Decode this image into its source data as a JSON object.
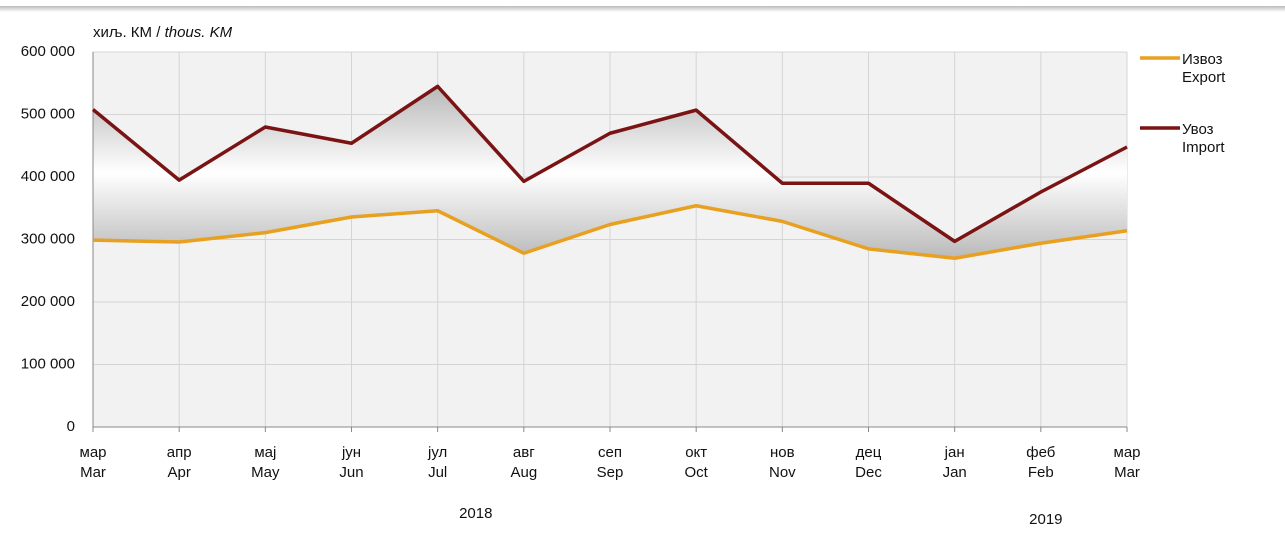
{
  "chart_data": {
    "type": "line",
    "y_label": {
      "local": "хиљ. КМ /",
      "english": "thous. KM"
    },
    "categories": [
      "мар",
      "апр",
      "мај",
      "јун",
      "јул",
      "авг",
      "сеп",
      "окт",
      "нов",
      "дец",
      "јан",
      "феб",
      "мар"
    ],
    "categories_en": [
      "Mar",
      "Apr",
      "May",
      "Jun",
      "Jul",
      "Aug",
      "Sep",
      "Oct",
      "Nov",
      "Dec",
      "Jan",
      "Feb",
      "Mar"
    ],
    "years": [
      "2018",
      "2019"
    ],
    "series": [
      {
        "name": "Извоз",
        "name_en": "Export",
        "color": "#e8a020",
        "values": [
          299000,
          296000,
          311000,
          336000,
          346000,
          278000,
          324000,
          354000,
          329000,
          285000,
          270000,
          294000,
          314000
        ]
      },
      {
        "name": "Увоз",
        "name_en": "Import",
        "color": "#7a1414",
        "values": [
          508000,
          395000,
          480000,
          454000,
          545000,
          393000,
          470000,
          507000,
          390000,
          390000,
          297000,
          376000,
          448000
        ]
      }
    ],
    "ylim": [
      0,
      600000
    ],
    "yticks": [
      0,
      {
        "value": 100000,
        "label": "100 000"
      },
      {
        "value": 200000,
        "label": "200 000"
      },
      {
        "value": 300000,
        "label": "300 000"
      },
      {
        "value": 400000,
        "label": "400 000"
      },
      {
        "value": 500000,
        "label": "500 000"
      },
      {
        "value": 600000,
        "label": "600 000"
      }
    ],
    "grid": true,
    "legend": "right"
  }
}
